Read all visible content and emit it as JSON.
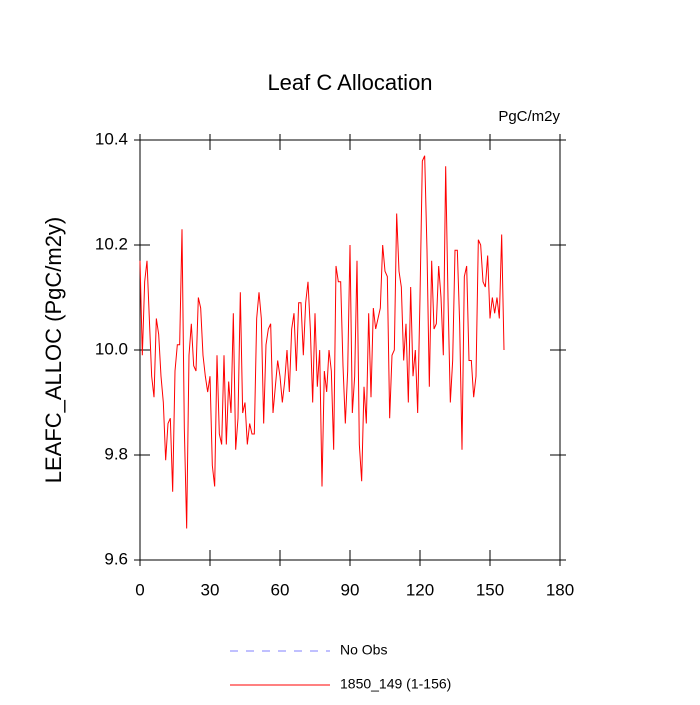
{
  "chart_data": {
    "type": "line",
    "title": "Leaf C Allocation",
    "units": "PgC/m2y",
    "ylabel": "LEAFC_ALLOC  (PgC/m2y)",
    "x": [
      0,
      1,
      2,
      3,
      4,
      5,
      6,
      7,
      8,
      9,
      10,
      11,
      12,
      13,
      14,
      15,
      16,
      17,
      18,
      19,
      20,
      21,
      22,
      23,
      24,
      25,
      26,
      27,
      28,
      29,
      30,
      31,
      32,
      33,
      34,
      35,
      36,
      37,
      38,
      39,
      40,
      41,
      42,
      43,
      44,
      45,
      46,
      47,
      48,
      49,
      50,
      51,
      52,
      53,
      54,
      55,
      56,
      57,
      58,
      59,
      60,
      61,
      62,
      63,
      64,
      65,
      66,
      67,
      68,
      69,
      70,
      71,
      72,
      73,
      74,
      75,
      76,
      77,
      78,
      79,
      80,
      81,
      82,
      83,
      84,
      85,
      86,
      87,
      88,
      89,
      90,
      91,
      92,
      93,
      94,
      95,
      96,
      97,
      98,
      99,
      100,
      101,
      102,
      103,
      104,
      105,
      106,
      107,
      108,
      109,
      110,
      111,
      112,
      113,
      114,
      115,
      116,
      117,
      118,
      119,
      120,
      121,
      122,
      123,
      124,
      125,
      126,
      127,
      128,
      129,
      130,
      131,
      132,
      133,
      134,
      135,
      136,
      137,
      138,
      139,
      140,
      141,
      142,
      143,
      144,
      145,
      146,
      147,
      148,
      149,
      150,
      151,
      152,
      153,
      154,
      155,
      156
    ],
    "series": [
      {
        "name": "1850_149 (1-156)",
        "color": "#ff0000",
        "values": [
          10.17,
          9.99,
          10.13,
          10.17,
          10.06,
          9.95,
          9.91,
          10.06,
          10.03,
          9.95,
          9.9,
          9.79,
          9.86,
          9.87,
          9.73,
          9.96,
          10.01,
          10.01,
          10.23,
          9.85,
          9.66,
          9.99,
          10.05,
          9.97,
          9.96,
          10.1,
          10.08,
          9.99,
          9.95,
          9.92,
          9.95,
          9.78,
          9.74,
          9.99,
          9.84,
          9.82,
          9.99,
          9.82,
          9.94,
          9.88,
          10.07,
          9.81,
          9.87,
          10.11,
          9.88,
          9.9,
          9.82,
          9.86,
          9.84,
          9.84,
          10.06,
          10.11,
          10.06,
          9.86,
          10.01,
          10.04,
          10.05,
          9.88,
          9.93,
          9.98,
          9.95,
          9.9,
          9.94,
          10.0,
          9.92,
          10.04,
          10.07,
          9.96,
          10.09,
          10.09,
          9.99,
          10.09,
          10.13,
          10.04,
          9.9,
          10.07,
          9.93,
          10.0,
          9.74,
          9.96,
          9.92,
          10.0,
          9.96,
          9.81,
          10.16,
          10.13,
          10.13,
          9.97,
          9.86,
          9.96,
          10.2,
          9.88,
          9.95,
          10.17,
          9.82,
          9.75,
          9.93,
          9.86,
          10.07,
          9.91,
          10.08,
          10.04,
          10.06,
          10.08,
          10.2,
          10.15,
          10.14,
          9.87,
          9.99,
          10.0,
          10.26,
          10.15,
          10.12,
          9.98,
          10.05,
          9.9,
          10.12,
          9.95,
          10.0,
          9.88,
          10.1,
          10.36,
          10.37,
          10.19,
          9.93,
          10.17,
          10.04,
          10.05,
          10.16,
          10.1,
          9.99,
          10.35,
          10.1,
          9.9,
          9.98,
          10.19,
          10.19,
          10.05,
          9.81,
          10.14,
          10.16,
          9.98,
          9.98,
          9.91,
          9.95,
          10.21,
          10.2,
          10.13,
          10.12,
          10.18,
          10.06,
          10.1,
          10.07,
          10.1,
          10.06,
          10.22,
          10.0
        ]
      }
    ],
    "reference": {
      "name": "No Obs",
      "color": "#8080ff"
    },
    "xlim": [
      0,
      180
    ],
    "xticks": [
      0,
      30,
      60,
      90,
      120,
      150,
      180
    ],
    "ylim": [
      9.6,
      10.4
    ],
    "yticks": [
      9.6,
      9.8,
      {
        "value": 10,
        "label": "10.0"
      },
      10.2,
      10.4
    ]
  }
}
